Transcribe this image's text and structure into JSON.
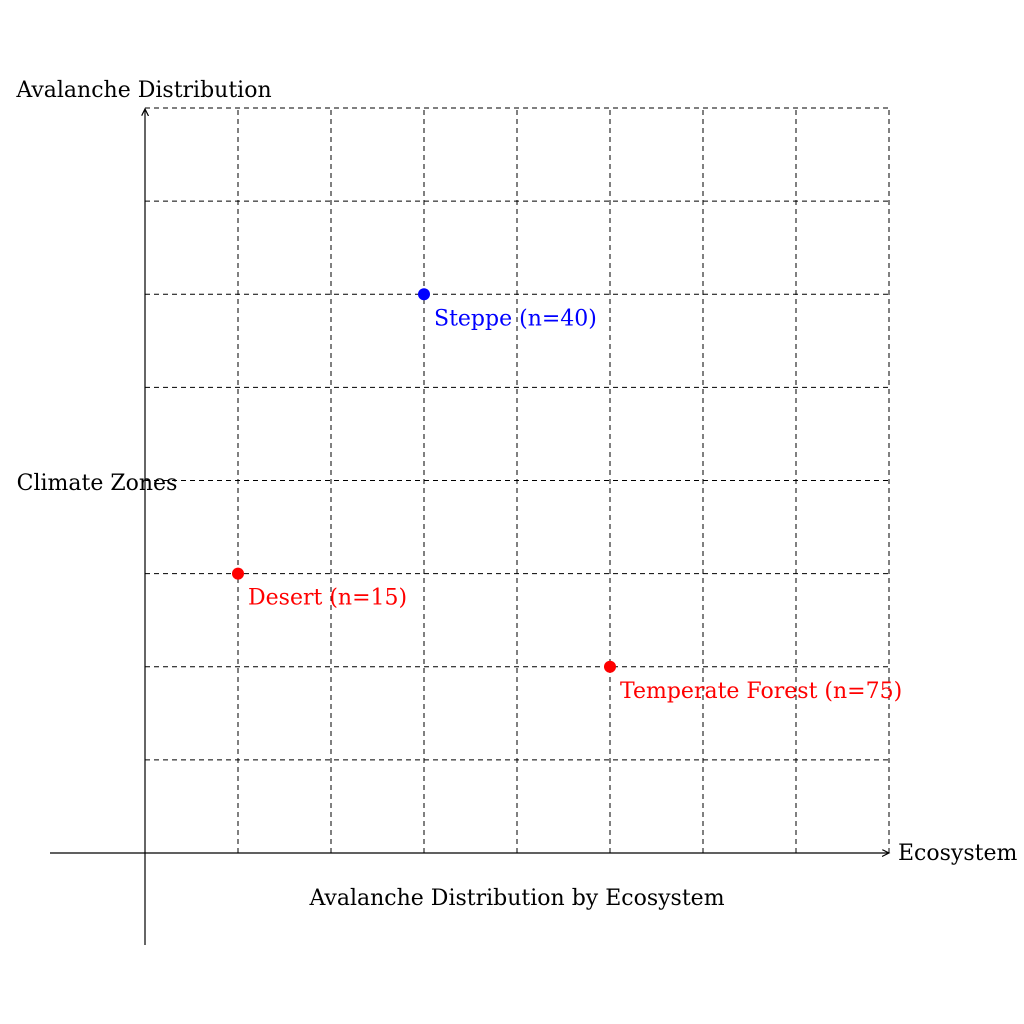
{
  "chart_data": {
    "type": "scatter",
    "title": "Avalanche Distribution by Ecosystem",
    "xlabel": "Ecosystem",
    "ylabel": "Avalanche Distribution",
    "y_side_label": "Climate Zones",
    "xlim": [
      0,
      8
    ],
    "ylim": [
      0,
      8
    ],
    "grid": true,
    "grid_style": "dashed",
    "points": [
      {
        "label": "Desert (n=15)",
        "x": 1,
        "y": 3,
        "color": "#ff0000"
      },
      {
        "label": "Steppe (n=40)",
        "x": 3,
        "y": 6,
        "color": "#0000ff"
      },
      {
        "label": "Temperate Forest (n=75)",
        "x": 5,
        "y": 2,
        "color": "#ff0000"
      }
    ]
  }
}
